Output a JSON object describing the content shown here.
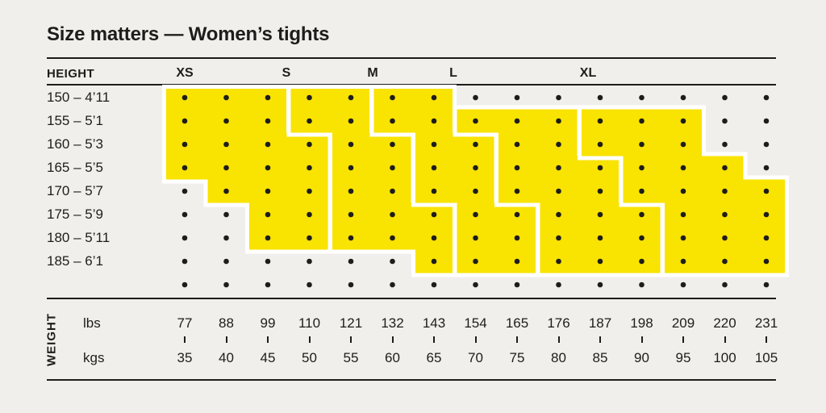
{
  "title": "Size matters — Women’s tights",
  "table": {
    "height_header": "HEIGHT",
    "weight_header": "WEIGHT",
    "lbs_label": "lbs",
    "kgs_label": "kgs",
    "size_headers": [
      "XS",
      "S",
      "M",
      "L",
      "XL"
    ]
  },
  "chart_data": {
    "type": "heatmap",
    "title": "Size matters — Women’s tights",
    "legend_position": "top",
    "grid": "dots",
    "x_axis": {
      "label": "WEIGHT",
      "units": [
        "lbs",
        "kgs"
      ],
      "lbs": [
        77,
        88,
        99,
        110,
        121,
        132,
        143,
        154,
        165,
        176,
        187,
        198,
        209,
        220,
        231
      ],
      "kgs": [
        35,
        40,
        45,
        50,
        55,
        60,
        65,
        70,
        75,
        80,
        85,
        90,
        95,
        100,
        105
      ]
    },
    "y_axis": {
      "label": "HEIGHT",
      "categories": [
        "150 – 4’11",
        "155 – 5’1",
        "160 – 5’3",
        "165 – 5’5",
        "170 – 5’7",
        "175 – 5’9",
        "180 – 5’11",
        "185 – 6’1"
      ],
      "extra_unlabeled_dot_rows": 1
    },
    "size_regions_note": "For each size: per height row (150→185), inclusive 1-based range [startCol,endCol] of covered weight columns; null = size not offered at that height.",
    "size_regions": [
      {
        "label": "XS",
        "rows": [
          [
            1,
            3
          ],
          [
            1,
            3
          ],
          [
            1,
            4
          ],
          [
            1,
            4
          ],
          [
            2,
            4
          ],
          [
            3,
            4
          ],
          [
            3,
            4
          ],
          null
        ]
      },
      {
        "label": "S",
        "rows": [
          [
            4,
            5
          ],
          [
            4,
            5
          ],
          [
            5,
            6
          ],
          [
            5,
            6
          ],
          [
            5,
            6
          ],
          [
            5,
            7
          ],
          [
            5,
            7
          ],
          [
            7,
            7
          ]
        ]
      },
      {
        "label": "M",
        "rows": [
          [
            6,
            7
          ],
          [
            6,
            7
          ],
          [
            7,
            8
          ],
          [
            7,
            8
          ],
          [
            7,
            8
          ],
          [
            8,
            9
          ],
          [
            8,
            9
          ],
          [
            8,
            9
          ]
        ]
      },
      {
        "label": "L",
        "rows": [
          null,
          [
            8,
            10
          ],
          [
            9,
            10
          ],
          [
            9,
            11
          ],
          [
            9,
            11
          ],
          [
            10,
            12
          ],
          [
            10,
            12
          ],
          [
            10,
            12
          ]
        ]
      },
      {
        "label": "XL",
        "rows": [
          null,
          [
            11,
            13
          ],
          [
            11,
            13
          ],
          [
            12,
            14
          ],
          [
            12,
            15
          ],
          [
            13,
            15
          ],
          [
            13,
            15
          ],
          [
            13,
            15
          ]
        ]
      }
    ]
  },
  "colors": {
    "background": "#F0EFEC",
    "region_yellow": "#F9E300",
    "gap_white": "#FFFFFF",
    "ink": "#1D1D1B"
  }
}
